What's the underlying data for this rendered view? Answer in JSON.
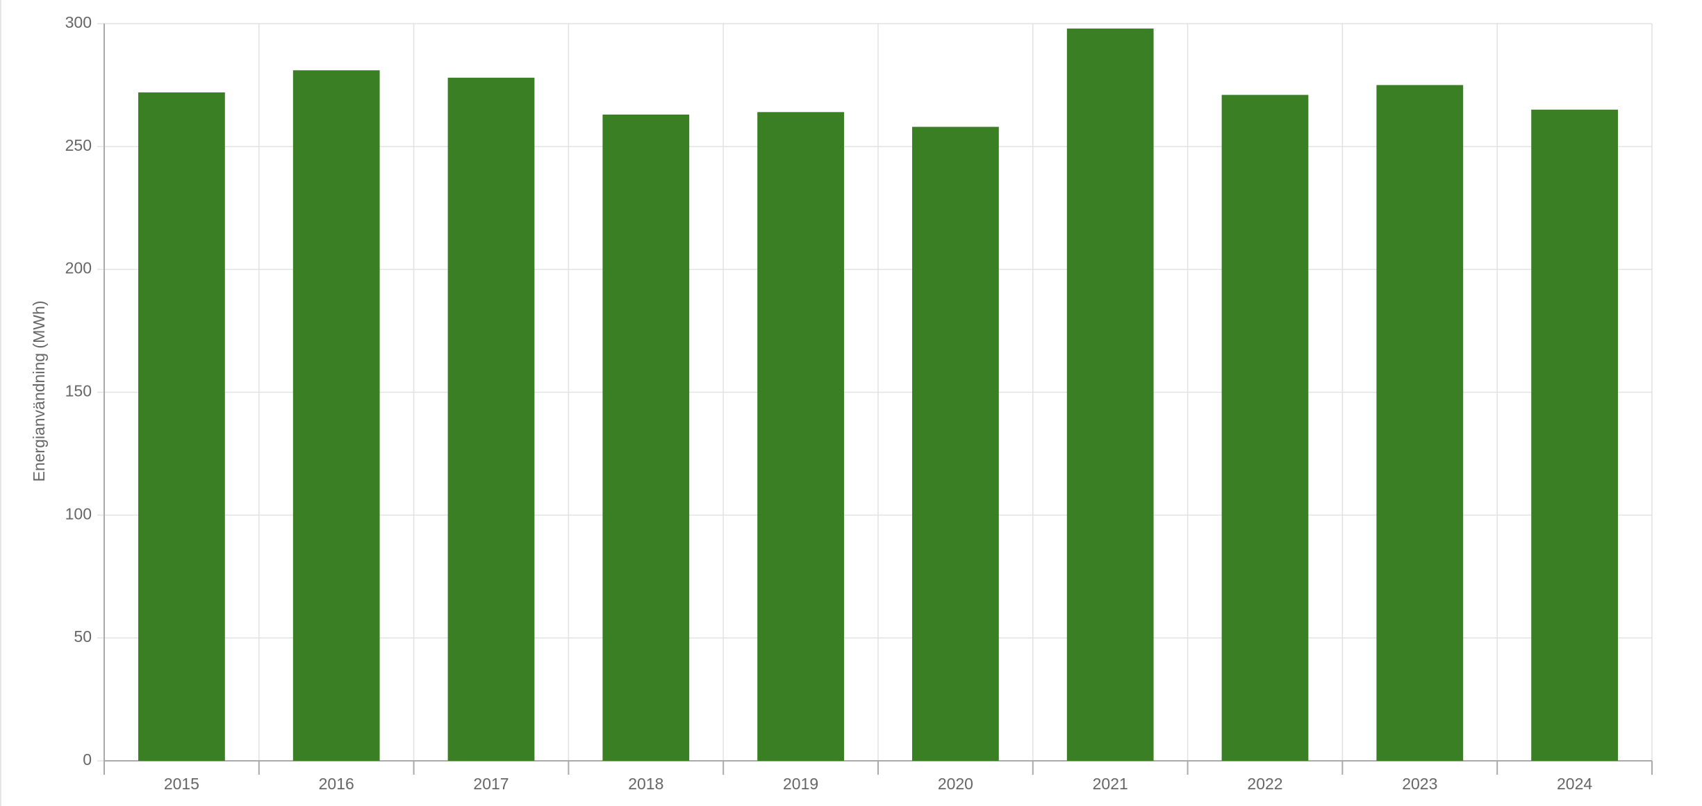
{
  "chart_data": {
    "type": "bar",
    "y_label": "Energianvändning (MWh)",
    "categories": [
      "2015",
      "2016",
      "2017",
      "2018",
      "2019",
      "2020",
      "2021",
      "2022",
      "2023",
      "2024"
    ],
    "values": [
      272,
      281,
      278,
      263,
      264,
      258,
      298,
      271,
      275,
      265
    ],
    "color": "#3b7f24",
    "ylim": [
      0,
      300
    ],
    "yticks": [
      0,
      50,
      100,
      150,
      200,
      250,
      300
    ],
    "grid": true
  }
}
